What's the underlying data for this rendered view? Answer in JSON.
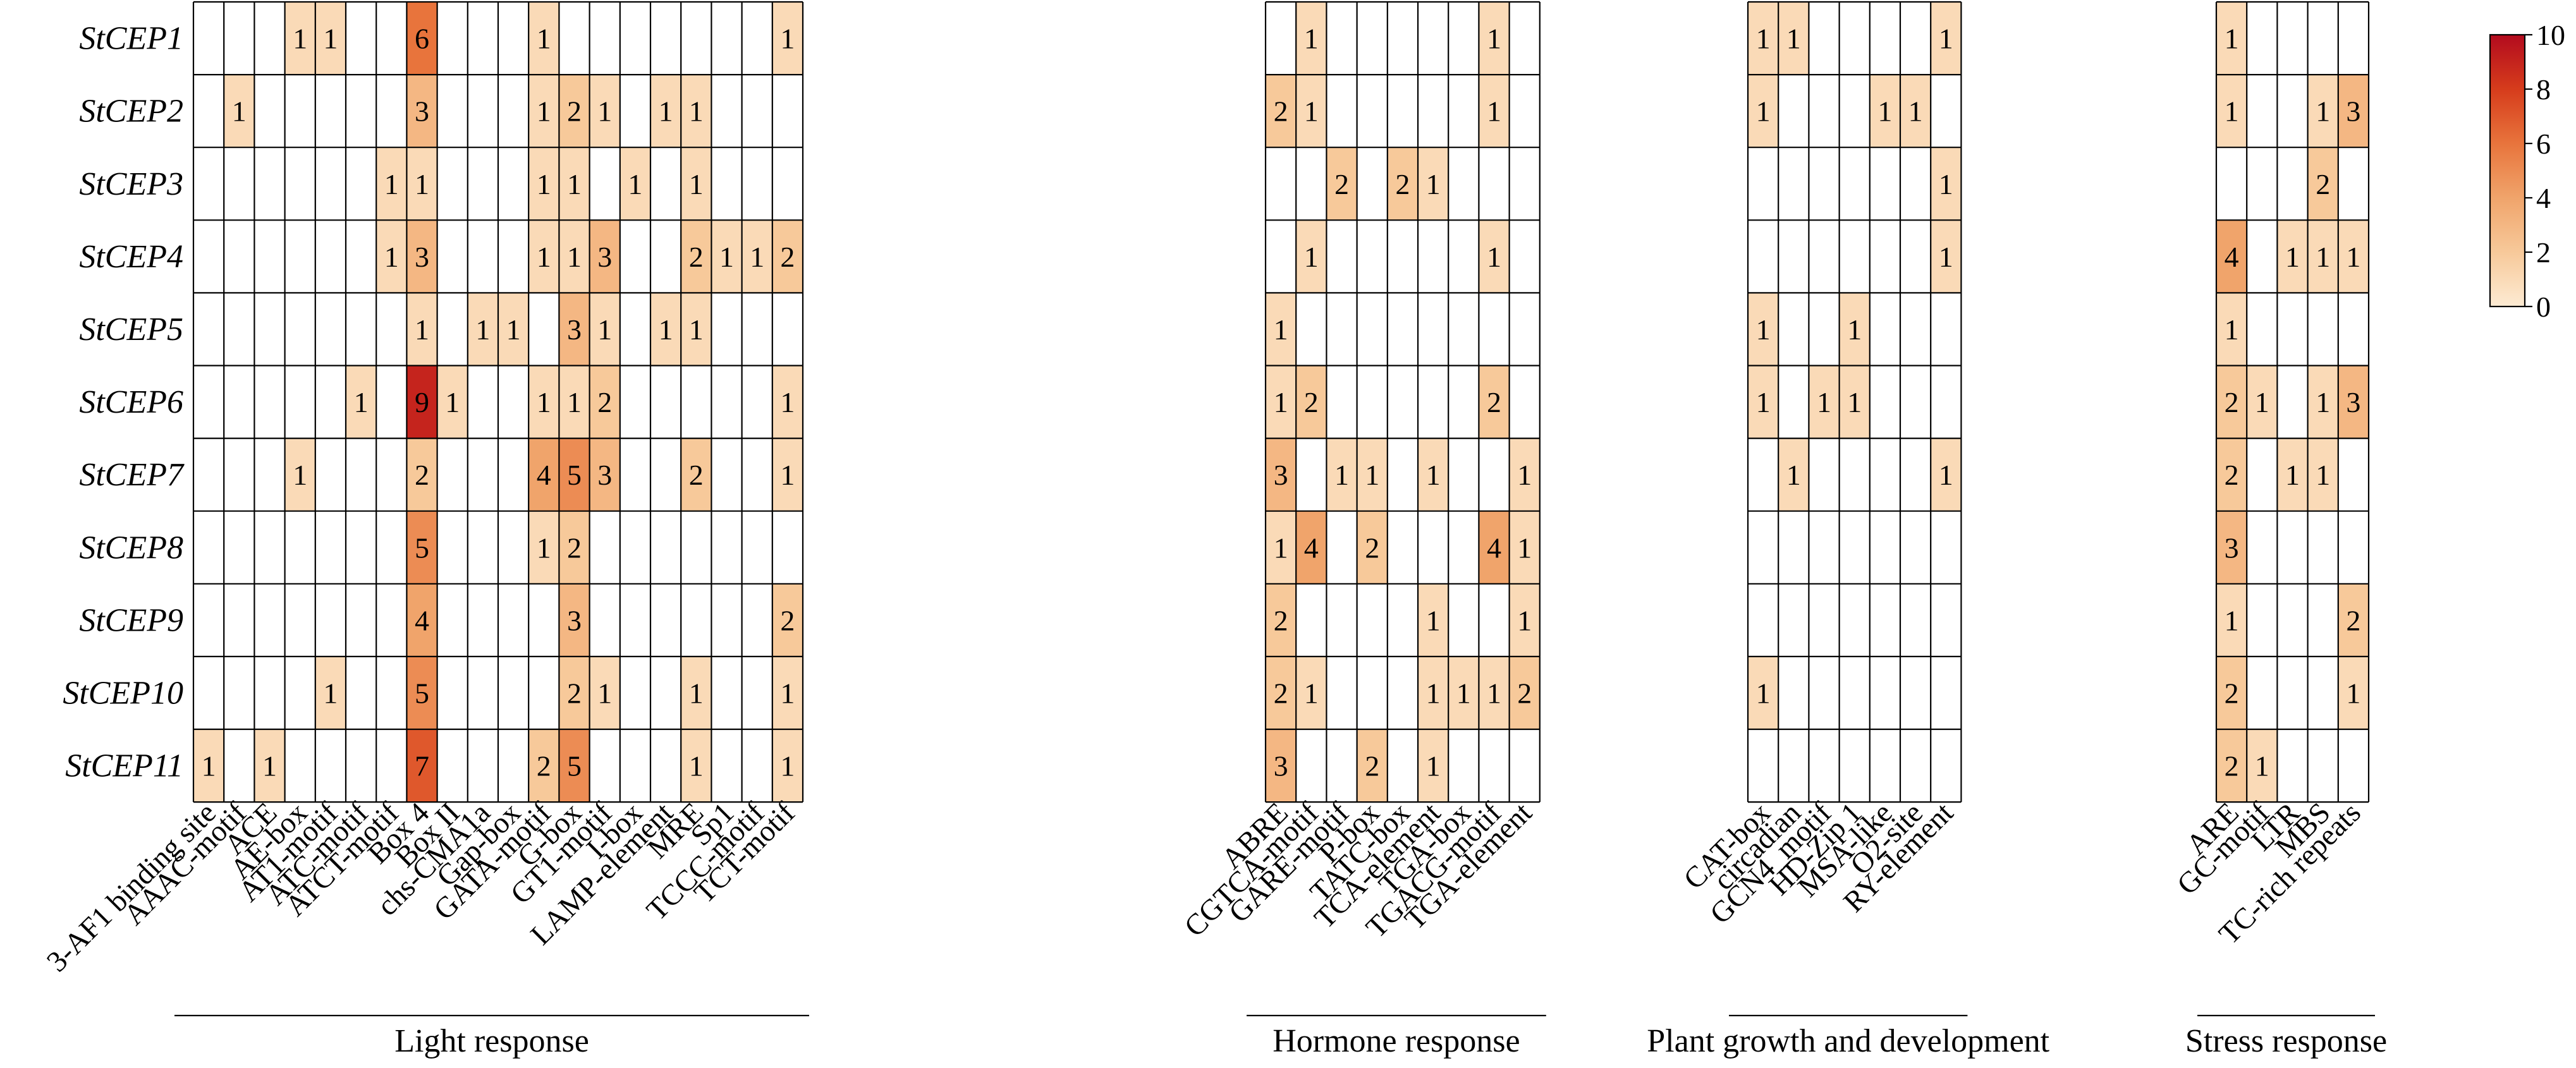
{
  "chart_data": {
    "type": "heatmap",
    "title": "",
    "rows": [
      "StCEP1",
      "StCEP2",
      "StCEP3",
      "StCEP4",
      "StCEP5",
      "StCEP6",
      "StCEP7",
      "StCEP8",
      "StCEP9",
      "StCEP10",
      "StCEP11"
    ],
    "groups": [
      {
        "name": "Light response",
        "columns": [
          "3-AF1 binding site",
          "AAAC-motif",
          "ACE",
          "AE-box",
          "AT1-motif",
          "ATC-motif",
          "ATCT-motif",
          "Box 4",
          "Box II",
          "chs-CMA1a",
          "Gap-box",
          "GATA-motif",
          "G-box",
          "GT1-motif",
          "I-box",
          "LAMP-element",
          "MRE",
          "Sp1",
          "TCCC-motif",
          "TCT-motif"
        ],
        "values": [
          [
            0,
            0,
            0,
            1,
            1,
            0,
            0,
            6,
            0,
            0,
            0,
            1,
            0,
            0,
            0,
            0,
            0,
            0,
            0,
            1
          ],
          [
            0,
            1,
            0,
            0,
            0,
            0,
            0,
            3,
            0,
            0,
            0,
            1,
            2,
            1,
            0,
            1,
            1,
            0,
            0,
            0
          ],
          [
            0,
            0,
            0,
            0,
            0,
            0,
            1,
            1,
            0,
            0,
            0,
            1,
            1,
            0,
            1,
            0,
            1,
            0,
            0,
            0
          ],
          [
            0,
            0,
            0,
            0,
            0,
            0,
            1,
            3,
            0,
            0,
            0,
            1,
            1,
            3,
            0,
            0,
            2,
            1,
            1,
            2
          ],
          [
            0,
            0,
            0,
            0,
            0,
            0,
            0,
            1,
            0,
            1,
            1,
            0,
            3,
            1,
            0,
            1,
            1,
            0,
            0,
            0
          ],
          [
            0,
            0,
            0,
            0,
            0,
            1,
            0,
            9,
            1,
            0,
            0,
            1,
            1,
            2,
            0,
            0,
            0,
            0,
            0,
            1
          ],
          [
            0,
            0,
            0,
            1,
            0,
            0,
            0,
            2,
            0,
            0,
            0,
            4,
            5,
            3,
            0,
            0,
            2,
            0,
            0,
            1
          ],
          [
            0,
            0,
            0,
            0,
            0,
            0,
            0,
            5,
            0,
            0,
            0,
            1,
            2,
            0,
            0,
            0,
            0,
            0,
            0,
            0
          ],
          [
            0,
            0,
            0,
            0,
            0,
            0,
            0,
            4,
            0,
            0,
            0,
            0,
            3,
            0,
            0,
            0,
            0,
            0,
            0,
            2
          ],
          [
            0,
            0,
            0,
            0,
            1,
            0,
            0,
            5,
            0,
            0,
            0,
            0,
            2,
            1,
            0,
            0,
            1,
            0,
            0,
            1
          ],
          [
            1,
            0,
            1,
            0,
            0,
            0,
            0,
            7,
            0,
            0,
            0,
            2,
            5,
            0,
            0,
            0,
            1,
            0,
            0,
            1
          ]
        ]
      },
      {
        "name": "Hormone response",
        "columns": [
          "ABRE",
          "CGTCA-motif",
          "GARE-motif",
          "P-box",
          "TATC-box",
          "TCA-element",
          "TGA-box",
          "TGACG-motif",
          "TGA-element"
        ],
        "values": [
          [
            0,
            1,
            0,
            0,
            0,
            0,
            0,
            1,
            0
          ],
          [
            2,
            1,
            0,
            0,
            0,
            0,
            0,
            1,
            0
          ],
          [
            0,
            0,
            2,
            0,
            2,
            1,
            0,
            0,
            0
          ],
          [
            0,
            1,
            0,
            0,
            0,
            0,
            0,
            1,
            0
          ],
          [
            1,
            0,
            0,
            0,
            0,
            0,
            0,
            0,
            0
          ],
          [
            1,
            2,
            0,
            0,
            0,
            0,
            0,
            2,
            0
          ],
          [
            3,
            0,
            1,
            1,
            0,
            1,
            0,
            0,
            1
          ],
          [
            1,
            4,
            0,
            2,
            0,
            0,
            0,
            4,
            1
          ],
          [
            2,
            0,
            0,
            0,
            0,
            1,
            0,
            0,
            1
          ],
          [
            2,
            1,
            0,
            0,
            0,
            1,
            1,
            1,
            2
          ],
          [
            3,
            0,
            0,
            2,
            0,
            1,
            0,
            0,
            0
          ]
        ]
      },
      {
        "name": "Plant growth and development",
        "columns": [
          "CAT-box",
          "circadian",
          "GCN4_motif",
          "HD-Zip 1",
          "MSA-like",
          "O2-site",
          "RY-element"
        ],
        "values": [
          [
            1,
            1,
            0,
            0,
            0,
            0,
            1
          ],
          [
            1,
            0,
            0,
            0,
            1,
            1,
            0
          ],
          [
            0,
            0,
            0,
            0,
            0,
            0,
            1
          ],
          [
            0,
            0,
            0,
            0,
            0,
            0,
            1
          ],
          [
            1,
            0,
            0,
            1,
            0,
            0,
            0
          ],
          [
            1,
            0,
            1,
            1,
            0,
            0,
            0
          ],
          [
            0,
            1,
            0,
            0,
            0,
            0,
            1
          ],
          [
            0,
            0,
            0,
            0,
            0,
            0,
            0
          ],
          [
            0,
            0,
            0,
            0,
            0,
            0,
            0
          ],
          [
            1,
            0,
            0,
            0,
            0,
            0,
            0
          ],
          [
            0,
            0,
            0,
            0,
            0,
            0,
            0
          ]
        ]
      },
      {
        "name": "Stress response",
        "columns": [
          "ARE",
          "GC-motif",
          "LTR",
          "MBS",
          "TC-rich repeats"
        ],
        "values": [
          [
            1,
            0,
            0,
            0,
            0
          ],
          [
            1,
            0,
            0,
            1,
            3
          ],
          [
            0,
            0,
            0,
            2,
            0
          ],
          [
            4,
            0,
            1,
            1,
            1
          ],
          [
            1,
            0,
            0,
            0,
            0
          ],
          [
            2,
            1,
            0,
            1,
            3
          ],
          [
            2,
            0,
            1,
            1,
            0
          ],
          [
            3,
            0,
            0,
            0,
            0
          ],
          [
            1,
            0,
            0,
            0,
            2
          ],
          [
            2,
            0,
            0,
            0,
            1
          ],
          [
            2,
            1,
            0,
            0,
            0
          ]
        ]
      }
    ],
    "colorbar": {
      "min": 0,
      "max": 10,
      "ticks": [
        "0",
        "2",
        "4",
        "6",
        "8",
        "10"
      ],
      "colors": [
        "#fdebd3",
        "#f7c99a",
        "#f0a46b",
        "#e8743c",
        "#d63c1c",
        "#b30b1e"
      ]
    },
    "zero_color": "#ffffff"
  }
}
